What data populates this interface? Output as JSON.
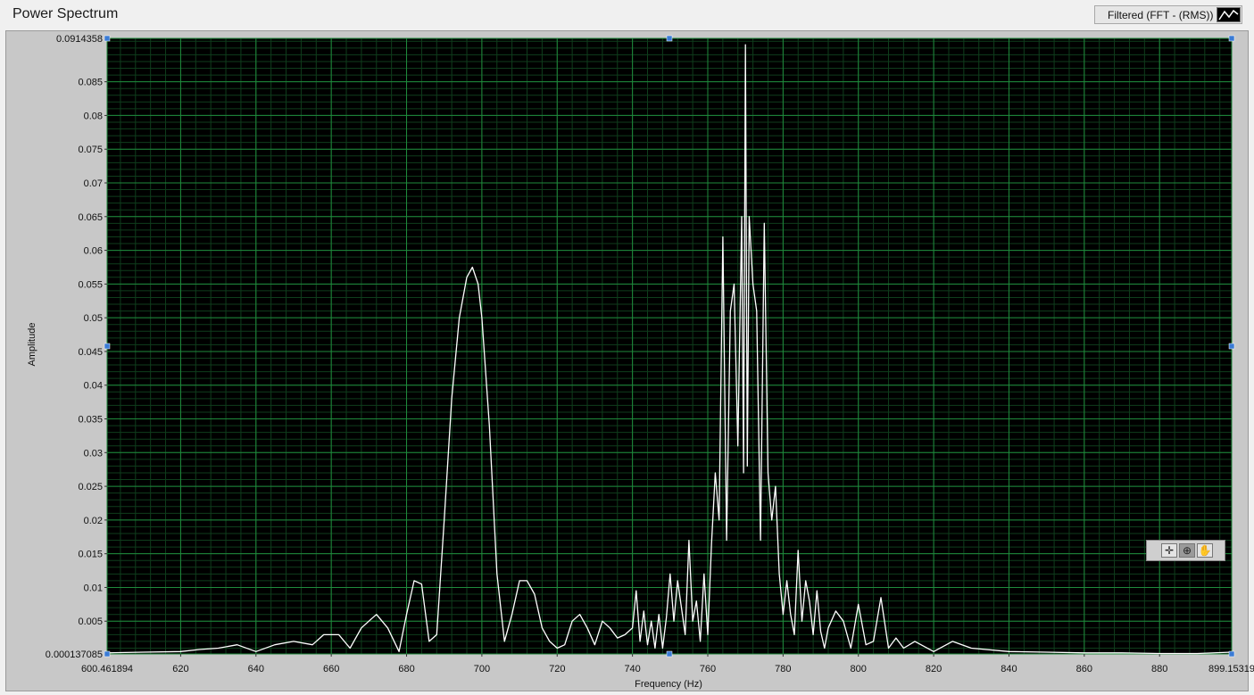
{
  "chart_data": {
    "type": "line",
    "title": "Power Spectrum",
    "xlabel": "Frequency (Hz)",
    "ylabel": "Amplitude",
    "xlim": [
      600.461894,
      899.153193
    ],
    "ylim": [
      0.000137085,
      0.0914358
    ],
    "x_ticks": [
      600.461894,
      620,
      640,
      660,
      680,
      700,
      720,
      740,
      760,
      780,
      800,
      820,
      840,
      860,
      880,
      899.153193
    ],
    "x_tick_labels": [
      "600.461894",
      "620",
      "640",
      "660",
      "680",
      "700",
      "720",
      "740",
      "760",
      "780",
      "800",
      "820",
      "840",
      "860",
      "880",
      "899.15319"
    ],
    "y_ticks": [
      0.000137085,
      0.005,
      0.01,
      0.015,
      0.02,
      0.025,
      0.03,
      0.035,
      0.04,
      0.045,
      0.05,
      0.055,
      0.06,
      0.065,
      0.07,
      0.075,
      0.08,
      0.085,
      0.0914358
    ],
    "y_tick_labels": [
      "0.000137085",
      "0.005",
      "0.01",
      "0.015",
      "0.02",
      "0.025",
      "0.03",
      "0.035",
      "0.04",
      "0.045",
      "0.05",
      "0.055",
      "0.06",
      "0.065",
      "0.07",
      "0.075",
      "0.08",
      "0.085",
      "0.0914358"
    ],
    "grid": true,
    "legend": "top-right",
    "colors": {
      "plot_bg": "#000000",
      "major_grid": "#1f8a3c",
      "minor_grid": "#0f3d1c",
      "line": "#ffffff"
    },
    "series": [
      {
        "name": "Filtered (FFT - (RMS))",
        "x": [
          600.46,
          610,
          620,
          625,
          630,
          635,
          640,
          645,
          650,
          655,
          658,
          660,
          662,
          665,
          668,
          670,
          672,
          675,
          678,
          680,
          682,
          684,
          686,
          688,
          690,
          692,
          694,
          696,
          697.5,
          699,
          700,
          702,
          704,
          706,
          708,
          710,
          712,
          714,
          716,
          718,
          720,
          722,
          724,
          726,
          728,
          730,
          732,
          734,
          736,
          738,
          740,
          741,
          742,
          743,
          744,
          745,
          746,
          747,
          748,
          749,
          750,
          751,
          752,
          753,
          754,
          755,
          756,
          757,
          758,
          759,
          760,
          761,
          762,
          763,
          764,
          765,
          766,
          767,
          768,
          769,
          769.5,
          770,
          770.5,
          771,
          772,
          773,
          774,
          775,
          776,
          777,
          778,
          779,
          780,
          781,
          782,
          783,
          784,
          785,
          786,
          787,
          788,
          789,
          790,
          791,
          792,
          794,
          796,
          798,
          800,
          802,
          804,
          806,
          808,
          810,
          812,
          815,
          820,
          825,
          830,
          840,
          850,
          860,
          870,
          880,
          890,
          899.15
        ],
        "y": [
          0.0003,
          0.0004,
          0.0005,
          0.0008,
          0.001,
          0.0015,
          0.0005,
          0.0015,
          0.002,
          0.0015,
          0.003,
          0.003,
          0.003,
          0.001,
          0.004,
          0.005,
          0.006,
          0.004,
          0.0005,
          0.006,
          0.011,
          0.0105,
          0.002,
          0.003,
          0.02,
          0.038,
          0.05,
          0.056,
          0.0575,
          0.055,
          0.05,
          0.034,
          0.012,
          0.002,
          0.006,
          0.011,
          0.011,
          0.009,
          0.004,
          0.002,
          0.001,
          0.0015,
          0.005,
          0.006,
          0.004,
          0.0015,
          0.005,
          0.004,
          0.0025,
          0.003,
          0.004,
          0.0095,
          0.002,
          0.0065,
          0.0015,
          0.005,
          0.001,
          0.006,
          0.001,
          0.0055,
          0.012,
          0.005,
          0.011,
          0.007,
          0.003,
          0.017,
          0.005,
          0.008,
          0.002,
          0.012,
          0.003,
          0.0165,
          0.027,
          0.02,
          0.062,
          0.017,
          0.051,
          0.055,
          0.031,
          0.065,
          0.027,
          0.0905,
          0.028,
          0.065,
          0.055,
          0.051,
          0.017,
          0.064,
          0.027,
          0.02,
          0.025,
          0.012,
          0.006,
          0.011,
          0.006,
          0.003,
          0.0155,
          0.005,
          0.011,
          0.008,
          0.003,
          0.0095,
          0.0035,
          0.001,
          0.004,
          0.0065,
          0.005,
          0.001,
          0.0075,
          0.0015,
          0.002,
          0.0085,
          0.001,
          0.0025,
          0.001,
          0.002,
          0.0005,
          0.002,
          0.001,
          0.0005,
          0.0004,
          0.0003,
          0.0003,
          0.0002,
          0.0002,
          0.0004
        ]
      }
    ]
  }
}
